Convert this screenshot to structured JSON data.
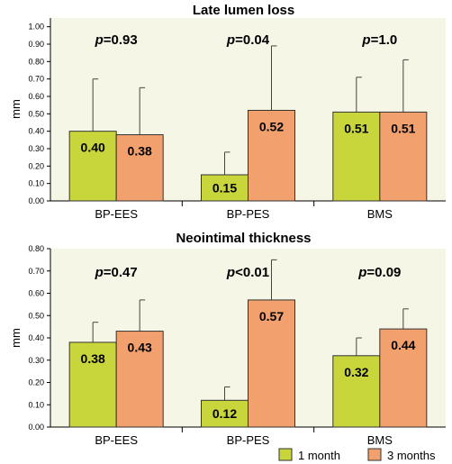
{
  "colors": {
    "one_month": "#c9d63b",
    "three_months": "#f2a06d",
    "plot_bg": "#f6f6e6"
  },
  "legend": [
    {
      "label": "1 month",
      "color": "#c9d63b"
    },
    {
      "label": "3 months",
      "color": "#f2a06d"
    }
  ],
  "chart_data": [
    {
      "type": "bar",
      "title": "Late lumen loss",
      "ylabel": "mm",
      "ylim": [
        0,
        1.05
      ],
      "yticks": [
        "0.00",
        "0.10",
        "0.20",
        "0.30",
        "0.40",
        "0.50",
        "0.60",
        "0.70",
        "0.80",
        "0.90",
        "1.00"
      ],
      "categories": [
        "BP-EES",
        "BP-PES",
        "BMS"
      ],
      "pvalues": [
        {
          "prefix": "p",
          "rest": "=0.93"
        },
        {
          "prefix": "p",
          "rest": "=0.04"
        },
        {
          "prefix": "p",
          "rest": "=1.0"
        }
      ],
      "series": [
        {
          "name": "1 month",
          "values": [
            0.4,
            0.15,
            0.51
          ],
          "labels": [
            "0.40",
            "0.15",
            "0.51"
          ],
          "err": [
            0.7,
            0.28,
            0.71
          ]
        },
        {
          "name": "3 months",
          "values": [
            0.38,
            0.52,
            0.51
          ],
          "labels": [
            "0.38",
            "0.52",
            "0.51"
          ],
          "err": [
            0.65,
            0.89,
            0.81
          ]
        }
      ]
    },
    {
      "type": "bar",
      "title": "Neointimal thickness",
      "ylabel": "mm",
      "ylim": [
        0,
        0.8
      ],
      "yticks": [
        "0.00",
        "0.10",
        "0.20",
        "0.30",
        "0.40",
        "0.50",
        "0.60",
        "0.70",
        "0.80"
      ],
      "categories": [
        "BP-EES",
        "BP-PES",
        "BMS"
      ],
      "pvalues": [
        {
          "prefix": "p",
          "rest": "=0.47"
        },
        {
          "prefix": "p",
          "rest": "<0.01"
        },
        {
          "prefix": "p",
          "rest": "=0.09"
        }
      ],
      "series": [
        {
          "name": "1 month",
          "values": [
            0.38,
            0.12,
            0.32
          ],
          "labels": [
            "0.38",
            "0.12",
            "0.32"
          ],
          "err": [
            0.47,
            0.18,
            0.4
          ]
        },
        {
          "name": "3 months",
          "values": [
            0.43,
            0.57,
            0.44
          ],
          "labels": [
            "0.43",
            "0.57",
            "0.44"
          ],
          "err": [
            0.57,
            0.75,
            0.53
          ]
        }
      ]
    }
  ]
}
